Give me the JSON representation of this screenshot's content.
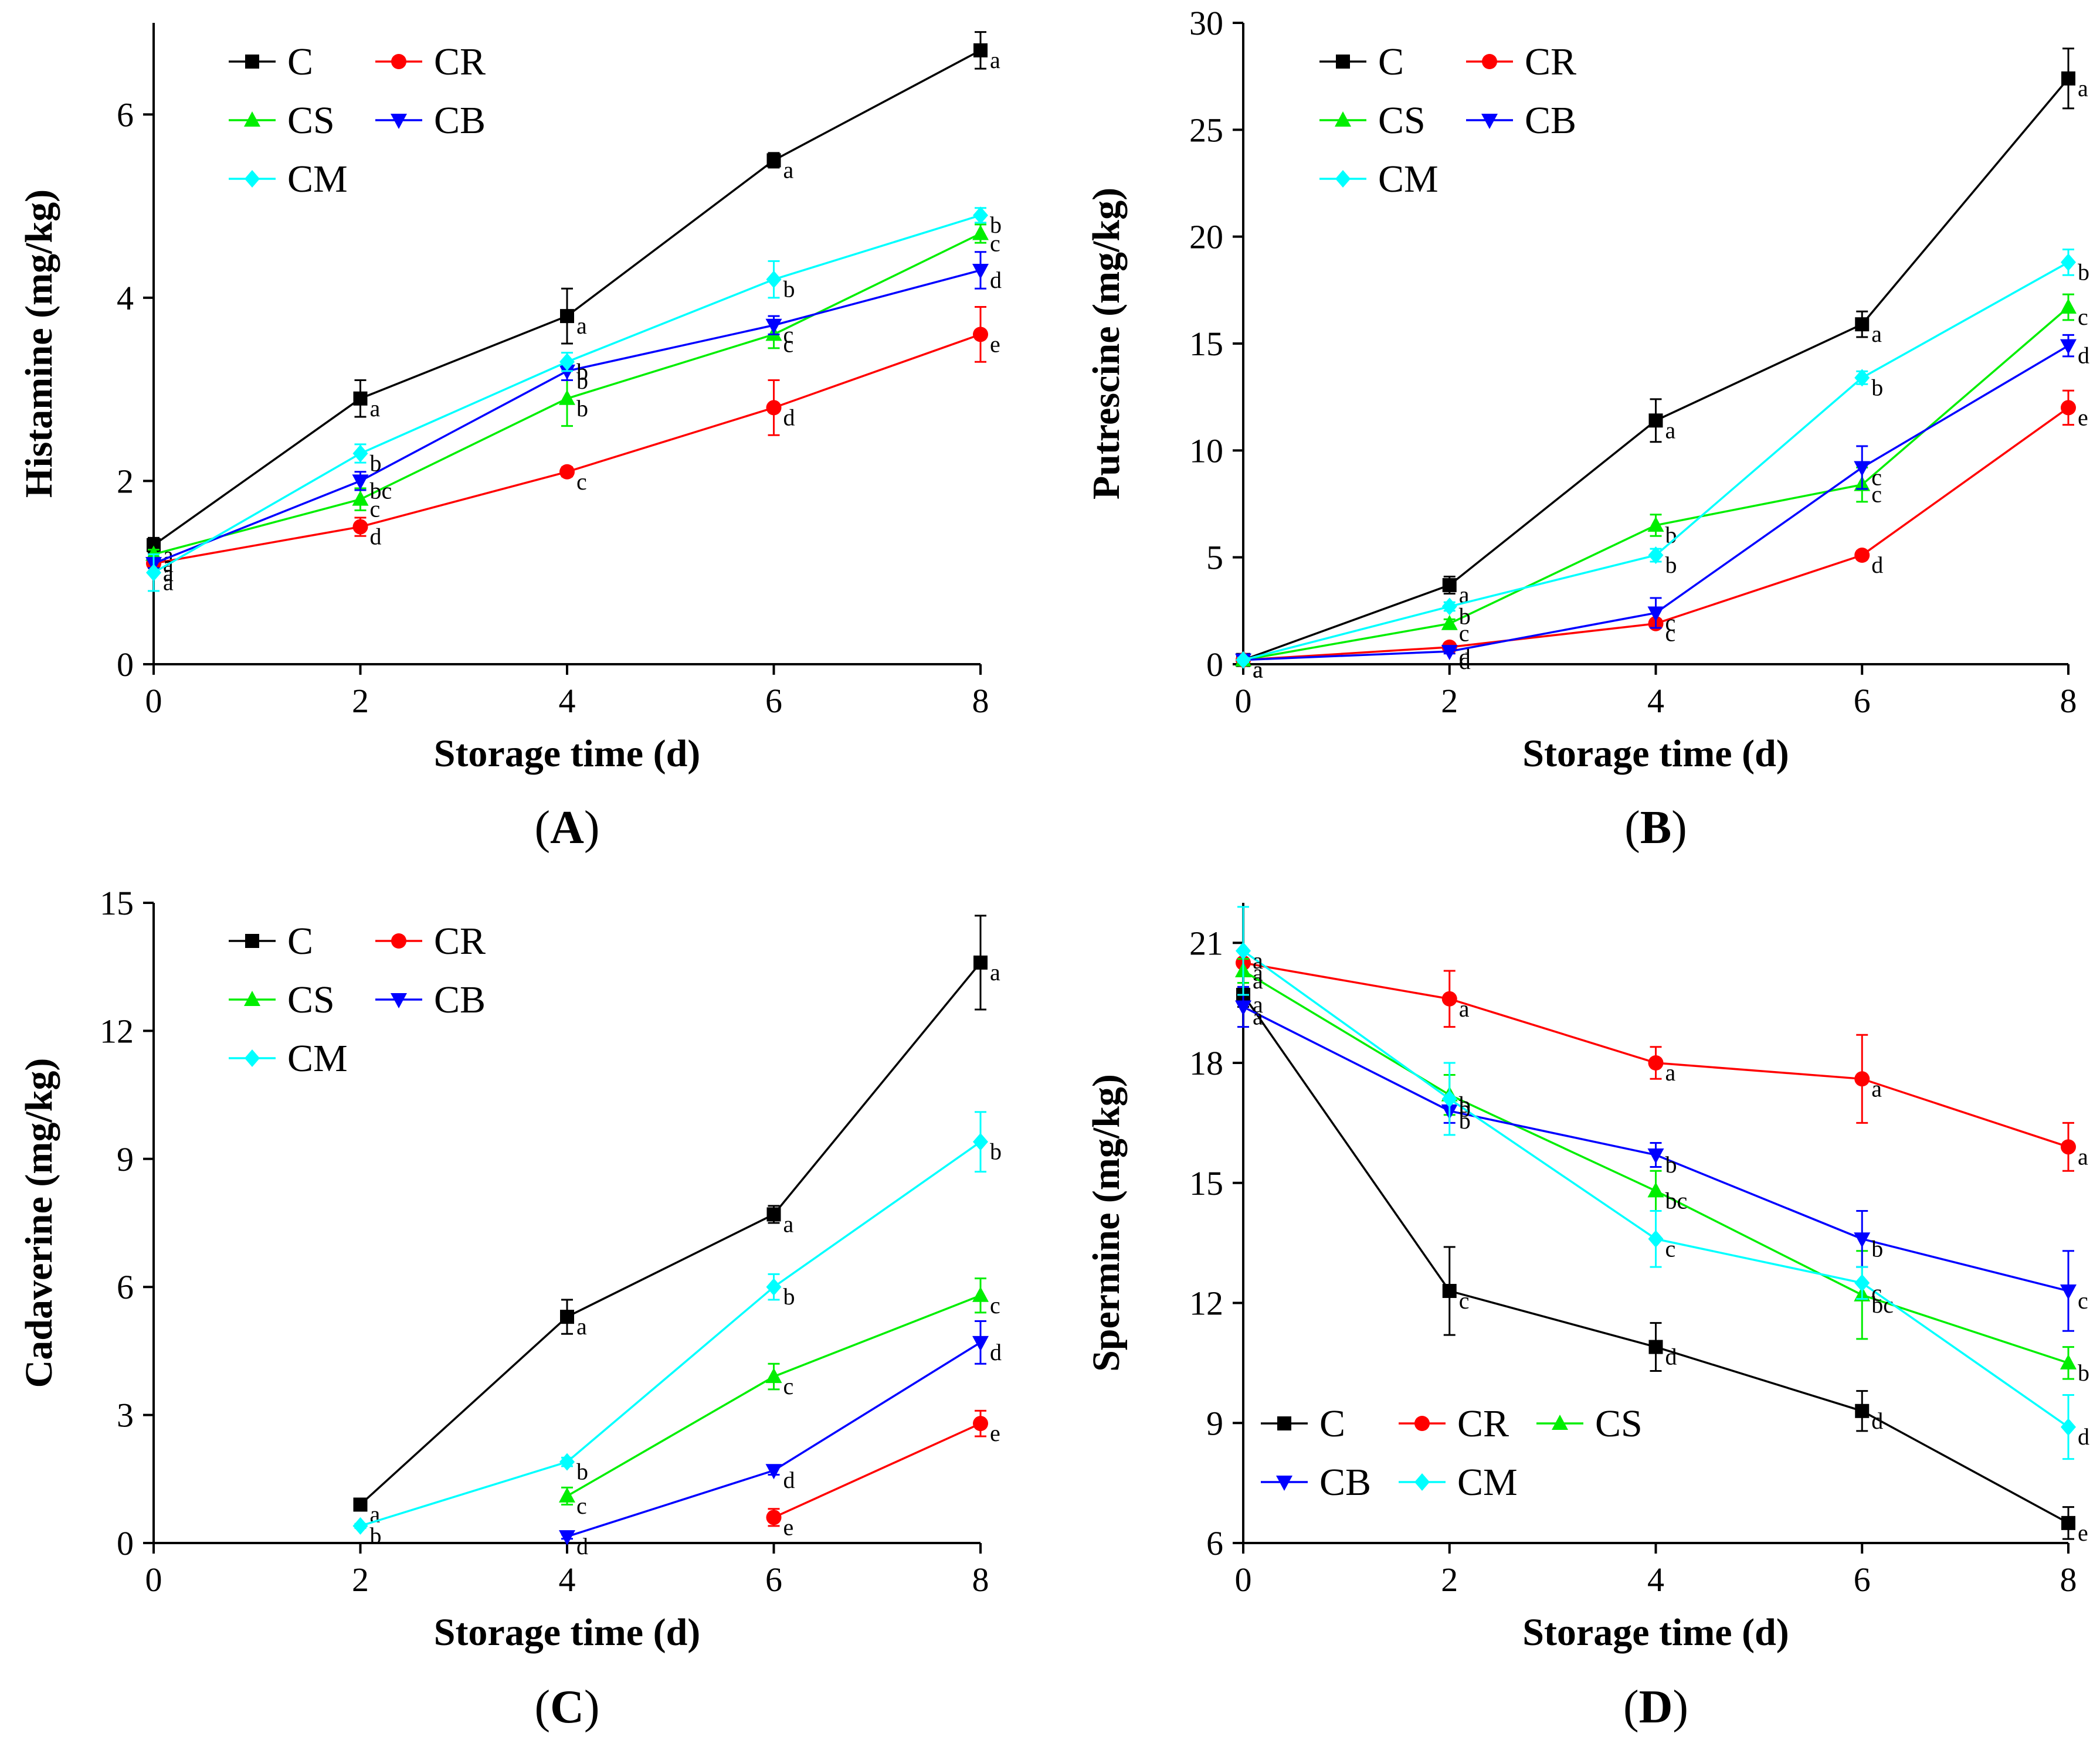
{
  "chart_data": [
    {
      "id": "A",
      "type": "line",
      "panel_label": "A",
      "xlabel": "Storage time (d)",
      "ylabel": "Histamine (mg/kg)",
      "xlim": [
        0,
        8
      ],
      "ylim": [
        0,
        7
      ],
      "xticks": [
        0,
        2,
        4,
        6,
        8
      ],
      "yticks": [
        0,
        2,
        4,
        6
      ],
      "legend_rows": [
        [
          "C",
          "CR"
        ],
        [
          "CS",
          "CB"
        ],
        [
          "CM"
        ]
      ],
      "series": [
        {
          "name": "C",
          "color": "#000000",
          "marker": "square",
          "x": [
            0,
            2,
            4,
            6,
            8
          ],
          "values": [
            1.3,
            2.9,
            3.8,
            5.5,
            6.7
          ],
          "errors": [
            0.08,
            0.2,
            0.3,
            0.08,
            0.2
          ],
          "labels": [
            "a",
            "a",
            "a",
            "a",
            "a"
          ]
        },
        {
          "name": "CR",
          "color": "#ff0000",
          "marker": "circle",
          "x": [
            0,
            2,
            4,
            6,
            8
          ],
          "values": [
            1.1,
            1.5,
            2.1,
            2.8,
            3.6
          ],
          "errors": [
            0.05,
            0.1,
            0.05,
            0.3,
            0.3
          ],
          "labels": [
            "a",
            "d",
            "c",
            "d",
            "e"
          ]
        },
        {
          "name": "CS",
          "color": "#00ee00",
          "marker": "triangle-up",
          "x": [
            0,
            2,
            4,
            6,
            8
          ],
          "values": [
            1.2,
            1.8,
            2.9,
            3.6,
            4.7
          ],
          "errors": [
            0.05,
            0.12,
            0.3,
            0.15,
            0.1
          ],
          "labels": [
            "a",
            "c",
            "b",
            "c",
            "c"
          ]
        },
        {
          "name": "CB",
          "color": "#0000ff",
          "marker": "triangle-down",
          "x": [
            0,
            2,
            4,
            6,
            8
          ],
          "values": [
            1.1,
            2.0,
            3.2,
            3.7,
            4.3
          ],
          "errors": [
            0.05,
            0.1,
            0.1,
            0.1,
            0.2
          ],
          "labels": [
            "a",
            "bc",
            "b",
            "c",
            "d"
          ]
        },
        {
          "name": "CM",
          "color": "#00ffff",
          "marker": "diamond",
          "x": [
            0,
            2,
            4,
            6,
            8
          ],
          "values": [
            1.0,
            2.3,
            3.3,
            4.2,
            4.9
          ],
          "errors": [
            0.2,
            0.1,
            0.1,
            0.2,
            0.08
          ],
          "labels": [
            "a",
            "b",
            "b",
            "b",
            "b"
          ]
        }
      ]
    },
    {
      "id": "B",
      "type": "line",
      "panel_label": "B",
      "xlabel": "Storage time (d)",
      "ylabel": "Putrescine (mg/kg)",
      "xlim": [
        0,
        8
      ],
      "ylim": [
        0,
        30
      ],
      "xticks": [
        0,
        2,
        4,
        6,
        8
      ],
      "yticks": [
        0,
        5,
        10,
        15,
        20,
        25,
        30
      ],
      "legend_rows": [
        [
          "C",
          "CR"
        ],
        [
          "CS",
          "CB"
        ],
        [
          "CM"
        ]
      ],
      "series": [
        {
          "name": "C",
          "color": "#000000",
          "marker": "square",
          "x": [
            0,
            2,
            4,
            6,
            8
          ],
          "values": [
            0.2,
            3.7,
            11.4,
            15.9,
            27.4
          ],
          "errors": [
            0.1,
            0.4,
            1.0,
            0.6,
            1.4
          ],
          "labels": [
            "a",
            "a",
            "a",
            "a",
            "a"
          ]
        },
        {
          "name": "CR",
          "color": "#ff0000",
          "marker": "circle",
          "x": [
            0,
            2,
            4,
            6,
            8
          ],
          "values": [
            0.2,
            0.8,
            1.9,
            5.1,
            12.0
          ],
          "errors": [
            0.1,
            0.1,
            0.2,
            0.2,
            0.8
          ],
          "labels": [
            "a",
            "d",
            "c",
            "d",
            "e"
          ]
        },
        {
          "name": "CS",
          "color": "#00ee00",
          "marker": "triangle-up",
          "x": [
            0,
            2,
            4,
            6,
            8
          ],
          "values": [
            0.2,
            1.9,
            6.5,
            8.4,
            16.7
          ],
          "errors": [
            0.1,
            0.2,
            0.5,
            0.8,
            0.6
          ],
          "labels": [
            "a",
            "c",
            "b",
            "c",
            "c"
          ]
        },
        {
          "name": "CB",
          "color": "#0000ff",
          "marker": "triangle-down",
          "x": [
            0,
            2,
            4,
            6,
            8
          ],
          "values": [
            0.2,
            0.6,
            2.4,
            9.2,
            14.9
          ],
          "errors": [
            0.1,
            0.1,
            0.7,
            1.0,
            0.5
          ],
          "labels": [
            "a",
            "d",
            "c",
            "c",
            "d"
          ]
        },
        {
          "name": "CM",
          "color": "#00ffff",
          "marker": "diamond",
          "x": [
            0,
            2,
            4,
            6,
            8
          ],
          "values": [
            0.2,
            2.7,
            5.1,
            13.4,
            18.8
          ],
          "errors": [
            0.1,
            0.2,
            0.3,
            0.3,
            0.6
          ],
          "labels": [
            "a",
            "b",
            "b",
            "b",
            "b"
          ]
        }
      ]
    },
    {
      "id": "C",
      "type": "line",
      "panel_label": "C",
      "xlabel": "Storage time (d)",
      "ylabel": "Cadaverine (mg/kg)",
      "xlim": [
        0,
        8
      ],
      "ylim": [
        0,
        15
      ],
      "xticks": [
        0,
        2,
        4,
        6,
        8
      ],
      "yticks": [
        0,
        3,
        6,
        9,
        12,
        15
      ],
      "legend_rows": [
        [
          "C",
          "CR"
        ],
        [
          "CS",
          "CB"
        ],
        [
          "CM"
        ]
      ],
      "series": [
        {
          "name": "C",
          "color": "#000000",
          "marker": "square",
          "x": [
            2,
            4,
            6,
            8
          ],
          "values": [
            0.9,
            5.3,
            7.7,
            13.6
          ],
          "errors": [
            0.05,
            0.4,
            0.2,
            1.1
          ],
          "labels": [
            "a",
            "a",
            "a",
            "a"
          ]
        },
        {
          "name": "CR",
          "color": "#ff0000",
          "marker": "circle",
          "x": [
            6,
            8
          ],
          "values": [
            0.6,
            2.8
          ],
          "errors": [
            0.2,
            0.3
          ],
          "labels": [
            "e",
            "e"
          ]
        },
        {
          "name": "CS",
          "color": "#00ee00",
          "marker": "triangle-up",
          "x": [
            4,
            6,
            8
          ],
          "values": [
            1.1,
            3.9,
            5.8
          ],
          "errors": [
            0.2,
            0.3,
            0.4
          ],
          "labels": [
            "c",
            "c",
            "c"
          ]
        },
        {
          "name": "CB",
          "color": "#0000ff",
          "marker": "triangle-down",
          "x": [
            4,
            6,
            8
          ],
          "values": [
            0.15,
            1.7,
            4.7
          ],
          "errors": [
            0.05,
            0.1,
            0.5
          ],
          "labels": [
            "d",
            "d",
            "d"
          ]
        },
        {
          "name": "CM",
          "color": "#00ffff",
          "marker": "diamond",
          "x": [
            2,
            4,
            6,
            8
          ],
          "values": [
            0.4,
            1.9,
            6.0,
            9.4
          ],
          "errors": [
            0.05,
            0.1,
            0.3,
            0.7
          ],
          "labels": [
            "b",
            "b",
            "b",
            "b"
          ]
        }
      ]
    },
    {
      "id": "D",
      "type": "line",
      "panel_label": "D",
      "xlabel": "Storage time (d)",
      "ylabel": "Spermine (mg/kg)",
      "xlim": [
        0,
        8
      ],
      "ylim": [
        6,
        22
      ],
      "xticks": [
        0,
        2,
        4,
        6,
        8
      ],
      "yticks": [
        6,
        9,
        12,
        15,
        18,
        21
      ],
      "legend_rows": [
        [
          "C",
          "CR",
          "CS"
        ],
        [
          "CB",
          "CM"
        ]
      ],
      "series": [
        {
          "name": "C",
          "color": "#000000",
          "marker": "square",
          "x": [
            0,
            2,
            4,
            6,
            8
          ],
          "values": [
            19.7,
            12.3,
            10.9,
            9.3,
            6.5
          ],
          "errors": [
            0.3,
            1.1,
            0.6,
            0.5,
            0.4
          ],
          "labels": [
            "a",
            "c",
            "d",
            "d",
            "e"
          ]
        },
        {
          "name": "CR",
          "color": "#ff0000",
          "marker": "circle",
          "x": [
            0,
            2,
            4,
            6,
            8
          ],
          "values": [
            20.5,
            19.6,
            18.0,
            17.6,
            15.9
          ],
          "errors": [
            0.3,
            0.7,
            0.4,
            1.1,
            0.6
          ],
          "labels": [
            "a",
            "a",
            "a",
            "a",
            "a"
          ]
        },
        {
          "name": "CS",
          "color": "#00ee00",
          "marker": "triangle-up",
          "x": [
            0,
            2,
            4,
            6,
            8
          ],
          "values": [
            20.3,
            17.2,
            14.8,
            12.2,
            10.5
          ],
          "errors": [
            0.3,
            0.5,
            0.5,
            1.1,
            0.4
          ],
          "labels": [
            "a",
            "b",
            "bc",
            "bc",
            "b"
          ]
        },
        {
          "name": "CB",
          "color": "#0000ff",
          "marker": "triangle-down",
          "x": [
            0,
            2,
            4,
            6,
            8
          ],
          "values": [
            19.4,
            16.8,
            15.7,
            13.6,
            12.3
          ],
          "errors": [
            0.5,
            0.3,
            0.3,
            0.7,
            1.0
          ],
          "labels": [
            "a",
            "b",
            "b",
            "b",
            "c"
          ]
        },
        {
          "name": "CM",
          "color": "#00ffff",
          "marker": "diamond",
          "x": [
            0,
            2,
            4,
            6,
            8
          ],
          "values": [
            20.8,
            17.1,
            13.6,
            12.5,
            8.9
          ],
          "errors": [
            1.1,
            0.9,
            0.7,
            0.4,
            0.8
          ],
          "labels": [
            "a",
            "b",
            "c",
            "c",
            "d"
          ]
        }
      ]
    }
  ]
}
